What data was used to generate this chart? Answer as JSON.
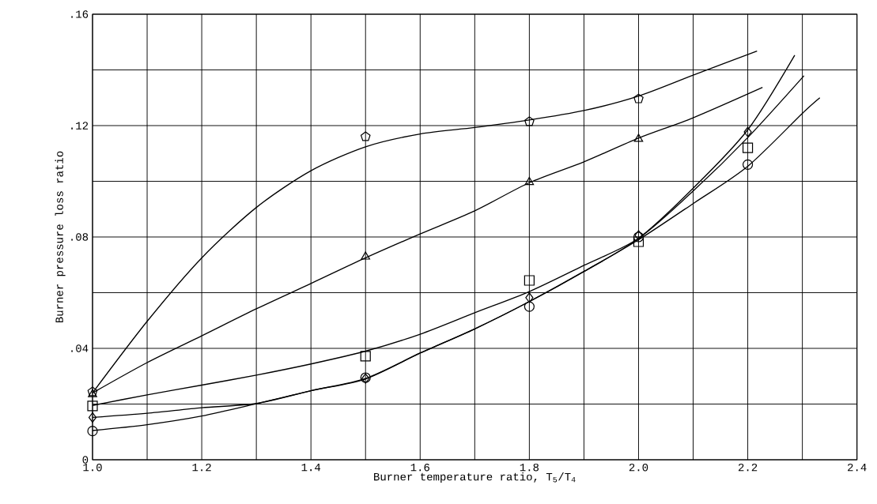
{
  "chart_data": {
    "type": "line",
    "xlabel": "Burner temperature ratio, T$_{5}$/T$_{4}$",
    "ylabel": "Burner pressure loss ratio",
    "xlim": [
      1.0,
      2.4
    ],
    "ylim": [
      0,
      0.16
    ],
    "xticks": [
      {
        "value": 1.0,
        "label": "1.0"
      },
      {
        "value": 1.1,
        "label": null
      },
      {
        "value": 1.2,
        "label": "1.2"
      },
      {
        "value": 1.3,
        "label": null
      },
      {
        "value": 1.4,
        "label": "1.4"
      },
      {
        "value": 1.5,
        "label": null
      },
      {
        "value": 1.6,
        "label": "1.6"
      },
      {
        "value": 1.7,
        "label": null
      },
      {
        "value": 1.8,
        "label": "1.8"
      },
      {
        "value": 1.9,
        "label": null
      },
      {
        "value": 2.0,
        "label": "2.0"
      },
      {
        "value": 2.1,
        "label": null
      },
      {
        "value": 2.2,
        "label": "2.2"
      },
      {
        "value": 2.3,
        "label": null
      },
      {
        "value": 2.4,
        "label": "2.4"
      }
    ],
    "yticks": [
      0,
      {
        "value": 0.02,
        "label": null
      },
      {
        "value": 0.04,
        "label": ".04"
      },
      {
        "value": 0.06,
        "label": null
      },
      {
        "value": 0.08,
        "label": ".08"
      },
      {
        "value": 0.1,
        "label": null
      },
      {
        "value": 0.12,
        "label": ".12"
      },
      {
        "value": 0.14,
        "label": null
      },
      {
        "value": 0.16,
        "label": ".16"
      }
    ],
    "grid": true,
    "series": [
      {
        "type": "scatter",
        "color": "#000000",
        "x": [
          1.0,
          1.5,
          1.8,
          2.0
        ],
        "values": [
          0.0244,
          0.116,
          0.1214,
          0.1296
        ]
      },
      {
        "type": "scatter",
        "marker": "triangle",
        "color": "#000000",
        "x": [
          1.0,
          1.5,
          1.8,
          2.0
        ],
        "values": [
          0.0235,
          0.0729,
          0.0997,
          0.1152
        ]
      },
      {
        "type": "scatter",
        "marker": "square",
        "color": "#000000",
        "x": [
          1.0,
          1.5,
          1.8,
          2.0,
          2.2
        ],
        "values": [
          0.0193,
          0.0372,
          0.0644,
          0.0783,
          0.112
        ]
      },
      {
        "type": "scatter",
        "marker": "diamond",
        "color": "#000000",
        "x": [
          1.0,
          1.5,
          1.8,
          2.0,
          2.2
        ],
        "values": [
          0.0152,
          0.0292,
          0.0582,
          0.0806,
          0.1177
        ]
      },
      {
        "type": "scatter",
        "marker": "circle",
        "color": "#000000",
        "x": [
          1.0,
          1.5,
          1.8,
          2.0,
          2.2
        ],
        "values": [
          0.0103,
          0.0295,
          0.055,
          0.08,
          0.106
        ]
      },
      {
        "marker": "none",
        "color": "#000000",
        "x": [
          1.0,
          1.1,
          1.2,
          1.3,
          1.4,
          1.5,
          1.6,
          1.7,
          1.8,
          1.9,
          2.0,
          2.1,
          2.217
        ],
        "values": [
          0.024,
          0.0497,
          0.0725,
          0.0906,
          0.1038,
          0.1124,
          0.117,
          0.1193,
          0.122,
          0.1254,
          0.1306,
          0.1381,
          0.1468
        ]
      },
      {
        "marker": "none",
        "color": "#000000",
        "x": [
          1.0,
          1.1,
          1.2,
          1.3,
          1.4,
          1.5,
          1.6,
          1.7,
          1.8,
          1.9,
          2.0,
          2.1,
          2.227
        ],
        "values": [
          0.024,
          0.0349,
          0.0445,
          0.0542,
          0.0633,
          0.0725,
          0.0811,
          0.0894,
          0.0995,
          0.107,
          0.1155,
          0.1228,
          0.1337
        ]
      },
      {
        "marker": "none",
        "color": "#000000",
        "x": [
          1.0,
          1.1,
          1.2,
          1.3,
          1.4,
          1.5,
          1.6,
          1.7,
          1.8,
          1.9,
          2.0,
          2.1,
          2.2,
          2.303
        ],
        "values": [
          0.0195,
          0.0233,
          0.0268,
          0.0304,
          0.0344,
          0.039,
          0.0451,
          0.0528,
          0.0604,
          0.0698,
          0.0795,
          0.0965,
          0.1157,
          0.1379
        ]
      },
      {
        "marker": "none",
        "color": "#000000",
        "x": [
          1.0,
          1.1,
          1.2,
          1.3,
          1.4,
          1.5,
          1.6,
          1.7,
          1.8,
          1.9,
          2.0,
          2.1,
          2.2,
          2.286
        ],
        "values": [
          0.0152,
          0.0167,
          0.0187,
          0.0202,
          0.0248,
          0.029,
          0.0383,
          0.047,
          0.0568,
          0.0676,
          0.0795,
          0.0975,
          0.1185,
          0.1453
        ]
      },
      {
        "marker": "none",
        "color": "#000000",
        "x": [
          1.0,
          1.1,
          1.2,
          1.3,
          1.4,
          1.5,
          1.6,
          1.7,
          1.8,
          1.9,
          2.0,
          2.1,
          2.2,
          2.3,
          2.332
        ],
        "values": [
          0.0105,
          0.0126,
          0.0157,
          0.0201,
          0.0248,
          0.0292,
          0.0383,
          0.047,
          0.0568,
          0.0676,
          0.079,
          0.092,
          0.1054,
          0.1244,
          0.13
        ]
      }
    ]
  }
}
